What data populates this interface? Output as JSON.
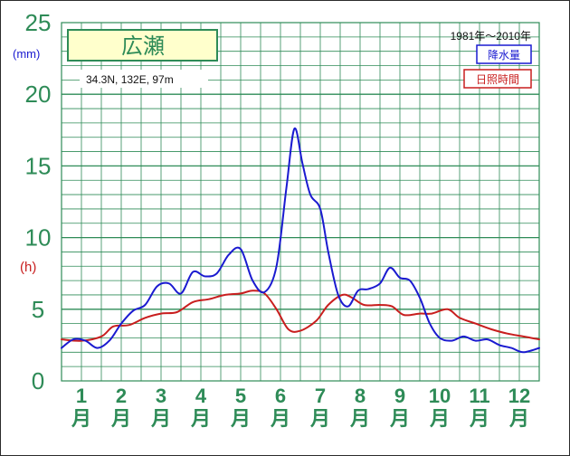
{
  "chart_data": {
    "type": "line",
    "station": "広瀬",
    "coordinates": "34.3N,  132E,  97m",
    "period": "1981年〜2010年",
    "y_ticks": [
      "0",
      "5",
      "10",
      "15",
      "20",
      "25"
    ],
    "y_unit_precip": "(mm)",
    "y_unit_sun": "(h)",
    "ylim": [
      0,
      25
    ],
    "months": [
      {
        "num": "1",
        "suffix": "月"
      },
      {
        "num": "2",
        "suffix": "月"
      },
      {
        "num": "3",
        "suffix": "月"
      },
      {
        "num": "4",
        "suffix": "月"
      },
      {
        "num": "5",
        "suffix": "月"
      },
      {
        "num": "6",
        "suffix": "月"
      },
      {
        "num": "7",
        "suffix": "月"
      },
      {
        "num": "8",
        "suffix": "月"
      },
      {
        "num": "9",
        "suffix": "月"
      },
      {
        "num": "10",
        "suffix": "月"
      },
      {
        "num": "11",
        "suffix": "月"
      },
      {
        "num": "12",
        "suffix": "月"
      }
    ],
    "x_range_months": [
      0.5,
      12.5
    ],
    "grid": true,
    "series": [
      {
        "name": "降水量",
        "color": "#1a1ad0",
        "points": [
          [
            0.5,
            2.3
          ],
          [
            0.8,
            2.9
          ],
          [
            1.1,
            2.8
          ],
          [
            1.4,
            2.3
          ],
          [
            1.7,
            2.8
          ],
          [
            2.0,
            4.0
          ],
          [
            2.3,
            4.9
          ],
          [
            2.6,
            5.3
          ],
          [
            2.9,
            6.6
          ],
          [
            3.2,
            6.8
          ],
          [
            3.5,
            6.1
          ],
          [
            3.8,
            7.6
          ],
          [
            4.1,
            7.3
          ],
          [
            4.4,
            7.5
          ],
          [
            4.7,
            8.8
          ],
          [
            5.0,
            9.2
          ],
          [
            5.3,
            7.0
          ],
          [
            5.6,
            6.2
          ],
          [
            5.9,
            8.0
          ],
          [
            6.15,
            13.5
          ],
          [
            6.35,
            17.6
          ],
          [
            6.55,
            15.2
          ],
          [
            6.75,
            13.0
          ],
          [
            7.0,
            12.0
          ],
          [
            7.2,
            9.0
          ],
          [
            7.45,
            6.0
          ],
          [
            7.7,
            5.2
          ],
          [
            7.95,
            6.3
          ],
          [
            8.2,
            6.4
          ],
          [
            8.5,
            6.8
          ],
          [
            8.75,
            7.9
          ],
          [
            9.0,
            7.2
          ],
          [
            9.25,
            7.0
          ],
          [
            9.5,
            5.8
          ],
          [
            9.75,
            4.0
          ],
          [
            10.0,
            3.0
          ],
          [
            10.3,
            2.8
          ],
          [
            10.6,
            3.1
          ],
          [
            10.9,
            2.8
          ],
          [
            11.2,
            2.9
          ],
          [
            11.5,
            2.5
          ],
          [
            11.8,
            2.3
          ],
          [
            12.1,
            2.0
          ],
          [
            12.5,
            2.3
          ]
        ]
      },
      {
        "name": "日照時間",
        "color": "#c81e1e",
        "points": [
          [
            0.5,
            2.9
          ],
          [
            1.0,
            2.8
          ],
          [
            1.5,
            3.1
          ],
          [
            1.8,
            3.8
          ],
          [
            2.2,
            3.9
          ],
          [
            2.6,
            4.4
          ],
          [
            3.0,
            4.7
          ],
          [
            3.4,
            4.8
          ],
          [
            3.8,
            5.5
          ],
          [
            4.2,
            5.7
          ],
          [
            4.6,
            6.0
          ],
          [
            5.0,
            6.1
          ],
          [
            5.3,
            6.3
          ],
          [
            5.6,
            6.1
          ],
          [
            5.9,
            5.0
          ],
          [
            6.2,
            3.6
          ],
          [
            6.5,
            3.5
          ],
          [
            6.9,
            4.2
          ],
          [
            7.2,
            5.3
          ],
          [
            7.55,
            6.0
          ],
          [
            7.8,
            5.8
          ],
          [
            8.1,
            5.3
          ],
          [
            8.5,
            5.3
          ],
          [
            8.8,
            5.2
          ],
          [
            9.1,
            4.6
          ],
          [
            9.5,
            4.7
          ],
          [
            9.8,
            4.7
          ],
          [
            10.2,
            5.0
          ],
          [
            10.5,
            4.4
          ],
          [
            10.9,
            4.0
          ],
          [
            11.3,
            3.6
          ],
          [
            11.7,
            3.3
          ],
          [
            12.1,
            3.1
          ],
          [
            12.5,
            2.9
          ]
        ]
      }
    ]
  }
}
